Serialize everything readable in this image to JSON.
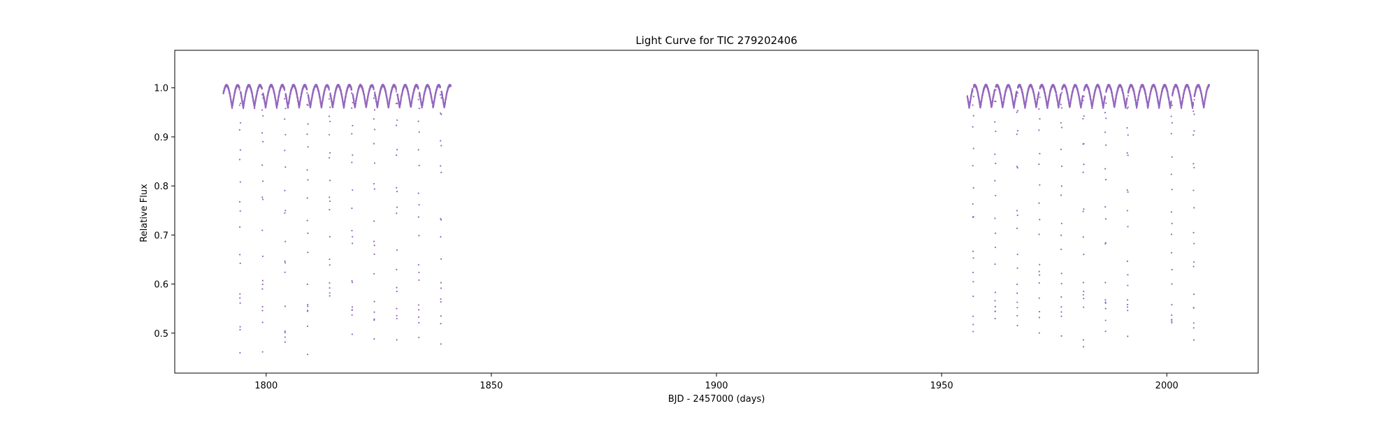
{
  "chart_data": {
    "type": "scatter",
    "title": "Light Curve for TIC 279202406",
    "xlabel": "BJD - 2457000 (days)",
    "ylabel": "Relative Flux",
    "xlim": [
      1779.7,
      2020.3
    ],
    "ylim": [
      0.4185,
      1.0765
    ],
    "xticks": [
      1800,
      1850,
      1900,
      1950,
      2000
    ],
    "xtick_labels": [
      "1800",
      "1850",
      "1900",
      "1950",
      "2000"
    ],
    "yticks": [
      0.5,
      0.6,
      0.7,
      0.8,
      0.9,
      1.0
    ],
    "ytick_labels": [
      "0.5",
      "0.6",
      "0.7",
      "0.8",
      "0.9",
      "1.0"
    ],
    "grid": false,
    "legend": "none",
    "marker_color": "#9467bd",
    "segments": [
      {
        "start": 1790.5,
        "end": 1841.0
      },
      {
        "start": 1955.7,
        "end": 2009.4
      }
    ],
    "baseline": 0.98,
    "modulation": {
      "amplitude": 0.045,
      "period": 2.48,
      "reference": 1791.2
    },
    "eclipses": [
      {
        "t": 1794.2,
        "depth": 0.455
      },
      {
        "t": 1799.2,
        "depth": 0.452
      },
      {
        "t": 1804.2,
        "depth": 0.448
      },
      {
        "t": 1809.2,
        "depth": 0.447
      },
      {
        "t": 1814.1,
        "depth": 0.562
      },
      {
        "t": 1819.1,
        "depth": 0.455
      },
      {
        "t": 1824.0,
        "depth": 0.458
      },
      {
        "t": 1829.0,
        "depth": 0.478
      },
      {
        "t": 1833.9,
        "depth": 0.453
      },
      {
        "t": 1838.8,
        "depth": 0.455
      },
      {
        "t": 1957.0,
        "depth": 0.462
      },
      {
        "t": 1961.9,
        "depth": 0.462
      },
      {
        "t": 1966.8,
        "depth": 0.462
      },
      {
        "t": 1971.7,
        "depth": 0.462
      },
      {
        "t": 1976.6,
        "depth": 0.462
      },
      {
        "t": 1981.5,
        "depth": 0.462
      },
      {
        "t": 1986.4,
        "depth": 0.462
      },
      {
        "t": 1991.3,
        "depth": 0.462
      },
      {
        "t": 2001.1,
        "depth": 0.462
      },
      {
        "t": 2006.0,
        "depth": 0.462
      }
    ]
  }
}
